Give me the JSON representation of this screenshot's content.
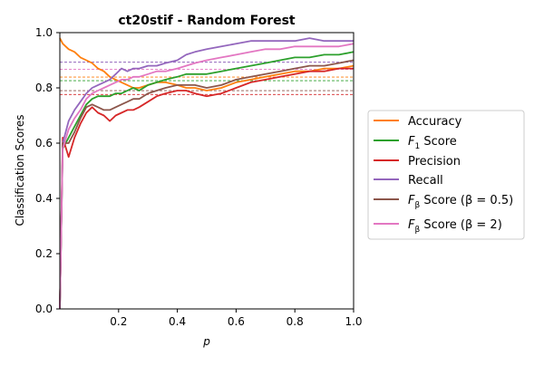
{
  "chart_data": {
    "type": "line",
    "title": "ct20stif - Random Forest",
    "xlabel": "p",
    "ylabel": "Classification Scores",
    "xlim": [
      0.0,
      1.0
    ],
    "ylim": [
      0.0,
      1.0
    ],
    "x_ticks": [
      0.2,
      0.4,
      0.6,
      0.8,
      1.0
    ],
    "x_tick_labels": [
      "0.2",
      "0.4",
      "0.6",
      "0.8",
      "1.0"
    ],
    "y_ticks": [
      0.0,
      0.2,
      0.4,
      0.6,
      0.8,
      1.0
    ],
    "y_tick_labels": [
      "0.0",
      "0.2",
      "0.4",
      "0.6",
      "0.8",
      "1.0"
    ],
    "grid": false,
    "legend_position": "right-outside",
    "x": [
      0.0,
      0.01,
      0.03,
      0.05,
      0.07,
      0.09,
      0.11,
      0.13,
      0.15,
      0.17,
      0.19,
      0.21,
      0.23,
      0.25,
      0.27,
      0.3,
      0.33,
      0.36,
      0.4,
      0.43,
      0.46,
      0.5,
      0.55,
      0.6,
      0.65,
      0.7,
      0.75,
      0.8,
      0.85,
      0.9,
      0.95,
      1.0
    ],
    "series": [
      {
        "name": "Accuracy",
        "color": "#ff7f0e",
        "values": [
          0.98,
          0.96,
          0.94,
          0.93,
          0.91,
          0.9,
          0.89,
          0.87,
          0.86,
          0.84,
          0.83,
          0.82,
          0.81,
          0.8,
          0.8,
          0.81,
          0.82,
          0.82,
          0.81,
          0.8,
          0.8,
          0.79,
          0.8,
          0.82,
          0.83,
          0.84,
          0.85,
          0.86,
          0.86,
          0.87,
          0.87,
          0.88
        ]
      },
      {
        "name": "F1 Score",
        "color": "#2ca02c",
        "values": [
          0.0,
          0.58,
          0.62,
          0.66,
          0.7,
          0.74,
          0.76,
          0.77,
          0.77,
          0.77,
          0.78,
          0.78,
          0.79,
          0.8,
          0.79,
          0.81,
          0.82,
          0.83,
          0.84,
          0.85,
          0.85,
          0.85,
          0.86,
          0.87,
          0.88,
          0.89,
          0.9,
          0.91,
          0.91,
          0.92,
          0.92,
          0.93
        ]
      },
      {
        "name": "Precision",
        "color": "#d62728",
        "values": [
          0.0,
          0.62,
          0.55,
          0.62,
          0.67,
          0.71,
          0.73,
          0.71,
          0.7,
          0.68,
          0.7,
          0.71,
          0.72,
          0.72,
          0.73,
          0.75,
          0.77,
          0.78,
          0.79,
          0.79,
          0.78,
          0.77,
          0.78,
          0.8,
          0.82,
          0.83,
          0.84,
          0.85,
          0.86,
          0.86,
          0.87,
          0.87
        ]
      },
      {
        "name": "Recall",
        "color": "#9467bd",
        "values": [
          0.0,
          0.6,
          0.68,
          0.72,
          0.75,
          0.78,
          0.8,
          0.81,
          0.82,
          0.83,
          0.85,
          0.87,
          0.86,
          0.87,
          0.87,
          0.88,
          0.88,
          0.89,
          0.9,
          0.92,
          0.93,
          0.94,
          0.95,
          0.96,
          0.97,
          0.97,
          0.97,
          0.97,
          0.98,
          0.97,
          0.97,
          0.97
        ]
      },
      {
        "name": "Fβ Score (β=0.5)",
        "color": "#8c564b",
        "values": [
          0.0,
          0.6,
          0.6,
          0.64,
          0.69,
          0.73,
          0.74,
          0.73,
          0.72,
          0.72,
          0.73,
          0.74,
          0.75,
          0.76,
          0.76,
          0.78,
          0.79,
          0.8,
          0.81,
          0.81,
          0.81,
          0.8,
          0.81,
          0.83,
          0.84,
          0.85,
          0.86,
          0.87,
          0.88,
          0.88,
          0.89,
          0.9
        ]
      },
      {
        "name": "Fβ Score (β=2)",
        "color": "#e377c2",
        "values": [
          0.0,
          0.58,
          0.65,
          0.69,
          0.72,
          0.76,
          0.78,
          0.79,
          0.8,
          0.81,
          0.82,
          0.83,
          0.83,
          0.84,
          0.84,
          0.85,
          0.86,
          0.86,
          0.87,
          0.88,
          0.89,
          0.9,
          0.91,
          0.92,
          0.93,
          0.94,
          0.94,
          0.95,
          0.95,
          0.95,
          0.95,
          0.96
        ]
      }
    ],
    "reference_lines": [
      {
        "series": "Accuracy",
        "value": 0.839
      },
      {
        "series": "F1 Score",
        "value": 0.826
      },
      {
        "series": "Precision",
        "value": 0.776
      },
      {
        "series": "Recall",
        "value": 0.893
      },
      {
        "series": "Fβ Score (β=0.5)",
        "value": 0.79
      },
      {
        "series": "Fβ Score (β=2)",
        "value": 0.867
      }
    ]
  },
  "legend": [
    {
      "label_main": "Accuracy",
      "label_sub": "",
      "label_rest": ""
    },
    {
      "label_main": "F",
      "label_sub": "1",
      "label_rest": " Score"
    },
    {
      "label_main": "Precision",
      "label_sub": "",
      "label_rest": ""
    },
    {
      "label_main": "Recall",
      "label_sub": "",
      "label_rest": ""
    },
    {
      "label_main": "F",
      "label_sub": "β",
      "label_rest": " Score (β = 0.5)"
    },
    {
      "label_main": "F",
      "label_sub": "β",
      "label_rest": " Score (β = 2)"
    }
  ]
}
